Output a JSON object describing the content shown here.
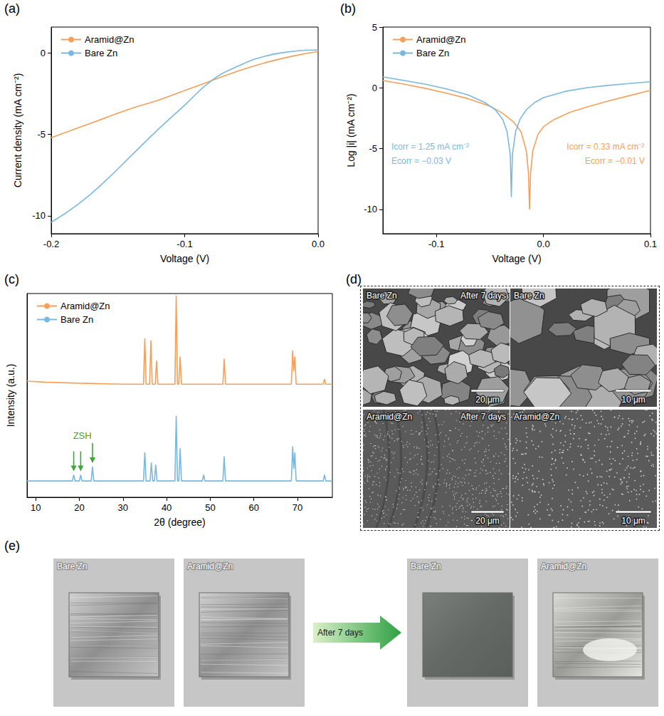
{
  "chart_data": [
    {
      "panel": "(a)",
      "type": "line",
      "x_label": "Voltage (V)",
      "y_label": "Current density (mA cm⁻²)",
      "xlim": [
        -0.2,
        0
      ],
      "xticks": [
        -0.2,
        -0.1,
        {
          "value": 0,
          "label": "0.0"
        }
      ],
      "ylim": [
        -11.1,
        1.6
      ],
      "yticks": [
        -10,
        -5,
        0
      ],
      "grid": false,
      "legend": "upper left",
      "x": [
        -0.2,
        -0.18,
        -0.16,
        -0.14,
        -0.12,
        -0.1,
        -0.08,
        -0.06,
        -0.04,
        -0.02,
        0
      ],
      "series": [
        {
          "name": "Aramid@Zn",
          "color": "#f5a05a",
          "values": [
            -5.2,
            -4.6,
            -4.0,
            -3.4,
            -2.9,
            -2.3,
            -1.7,
            -1.1,
            -0.6,
            -0.2,
            0.1
          ]
        },
        {
          "name": "Bare Zn",
          "color": "#7ab8e0",
          "values": [
            -10.4,
            -9.3,
            -7.9,
            -6.3,
            -4.7,
            -3.2,
            -1.7,
            -0.8,
            -0.2,
            0.1,
            0.2
          ]
        }
      ]
    },
    {
      "panel": "(b)",
      "type": "line",
      "x_label": "Voltage (V)",
      "y_label": "Log |i| (mA cm⁻²)",
      "xlim": [
        -0.15,
        0.1
      ],
      "xticks": [
        -0.1,
        {
          "value": 0,
          "label": "0.0"
        },
        0.1
      ],
      "ylim": [
        -12,
        5
      ],
      "yticks": [
        -10,
        -5,
        0,
        5
      ],
      "grid": false,
      "legend": "upper left",
      "series": [
        {
          "name": "Aramid@Zn",
          "color": "#f5a05a",
          "x": [
            -0.15,
            -0.13,
            -0.11,
            -0.09,
            -0.07,
            -0.05,
            -0.038,
            -0.028,
            -0.021,
            -0.016,
            -0.014,
            -0.013,
            -0.012,
            -0.01,
            -0.005,
            0.0,
            0.01,
            0.025,
            0.04,
            0.06,
            0.08,
            0.1
          ],
          "values": [
            0.6,
            0.3,
            -0.05,
            -0.45,
            -0.9,
            -1.5,
            -2.1,
            -2.8,
            -3.6,
            -5.2,
            -7.0,
            -10.0,
            -7.0,
            -5.2,
            -3.8,
            -3.2,
            -2.6,
            -2.0,
            -1.6,
            -1.1,
            -0.65,
            -0.2
          ]
        },
        {
          "name": "Bare Zn",
          "color": "#7ab8e0",
          "x": [
            -0.15,
            -0.13,
            -0.11,
            -0.09,
            -0.07,
            -0.055,
            -0.045,
            -0.038,
            -0.034,
            -0.031,
            -0.03,
            -0.029,
            -0.026,
            -0.022,
            -0.016,
            -0.008,
            0.0,
            0.02,
            0.04,
            0.06,
            0.08,
            0.1
          ],
          "values": [
            0.9,
            0.6,
            0.3,
            -0.1,
            -0.6,
            -1.2,
            -1.8,
            -2.6,
            -3.6,
            -5.5,
            -9.0,
            -5.5,
            -3.6,
            -2.6,
            -1.8,
            -1.2,
            -0.8,
            -0.3,
            0.0,
            0.2,
            0.35,
            0.5
          ]
        }
      ],
      "annotations": [
        {
          "series": "Bare Zn",
          "lines": [
            "Icorr = 1.25 mA cm⁻²",
            "Ecorr = −0.03 V"
          ]
        },
        {
          "series": "Aramid@Zn",
          "lines": [
            "Icorr = 0.33 mA cm⁻²",
            "Ecorr = −0.01 V"
          ]
        }
      ]
    },
    {
      "panel": "(c)",
      "type": "line",
      "x_label": "2θ (degree)",
      "y_label": "Intensity (a.u.)",
      "xlim": [
        8,
        78
      ],
      "xticks": [
        10,
        20,
        30,
        40,
        50,
        60,
        70
      ],
      "ylim": [
        0,
        100
      ],
      "tick_labels": "x",
      "grid": false,
      "legend": "upper left",
      "series": [
        {
          "name": "Aramid@Zn",
          "color": "#f5a05a",
          "x": [
            8,
            12,
            20,
            30,
            34.7,
            35.0,
            35.3,
            36.1,
            36.4,
            36.7,
            37.4,
            37.7,
            38.0,
            41.9,
            42.2,
            42.5,
            42.8,
            43.1,
            43.4,
            52.9,
            53.2,
            53.5,
            68.6,
            68.9,
            69.15,
            69.4,
            69.7,
            75.9,
            76.2,
            76.5,
            78
          ],
          "values": [
            57,
            56.5,
            56,
            55.5,
            55.5,
            78,
            55.5,
            55.5,
            77,
            55.5,
            55.5,
            67,
            55.5,
            55.5,
            99,
            55.5,
            55.5,
            69,
            55.5,
            55.5,
            68,
            55.5,
            55.5,
            72,
            62,
            69,
            55.5,
            55.5,
            58,
            55.5,
            55.5
          ]
        },
        {
          "name": "Bare Zn",
          "color": "#7ab8e0",
          "x": [
            8,
            15,
            18.4,
            18.7,
            19.0,
            20.0,
            20.3,
            20.6,
            22.7,
            23.0,
            23.3,
            30,
            34.7,
            35.0,
            35.3,
            36.2,
            36.5,
            36.8,
            37.2,
            37.5,
            37.8,
            41.9,
            42.2,
            42.5,
            42.8,
            43.1,
            43.4,
            48.2,
            48.5,
            48.8,
            52.9,
            53.2,
            53.5,
            68.6,
            68.9,
            69.15,
            69.4,
            69.7,
            75.9,
            76.2,
            76.5,
            78
          ],
          "values": [
            8,
            8,
            8,
            11,
            8,
            8,
            11,
            8,
            8,
            15,
            8,
            8,
            8,
            22,
            8,
            8,
            17,
            8,
            8,
            16,
            8,
            8,
            40,
            8,
            8,
            24,
            8,
            8,
            11,
            8,
            8,
            20,
            8,
            8,
            25,
            14,
            22,
            8,
            8,
            11,
            8,
            8
          ]
        }
      ],
      "annotations": [
        {
          "text": "ZSH",
          "color": "#3aa935",
          "series": "Bare Zn",
          "x": [
            18.7,
            20.3,
            23.0
          ]
        }
      ]
    }
  ],
  "sem_images": {
    "panel": "(d)",
    "images": [
      {
        "labels": [
          "Bare Zn",
          "After 7 days"
        ],
        "scale_bar": "20 μm"
      },
      {
        "labels": [
          "Bare Zn"
        ],
        "scale_bar": "10 μm"
      },
      {
        "labels": [
          "Aramid@Zn",
          "After 7 days"
        ],
        "scale_bar": "20 μm"
      },
      {
        "labels": [
          "Aramid@Zn"
        ],
        "scale_bar": "10 μm"
      }
    ]
  },
  "photos": {
    "panel": "(e)",
    "before": [
      "Bare Zn",
      "Aramid@Zn"
    ],
    "arrow": "After 7 days",
    "after": [
      "Bare Zn",
      "Aramid@Zn"
    ]
  }
}
